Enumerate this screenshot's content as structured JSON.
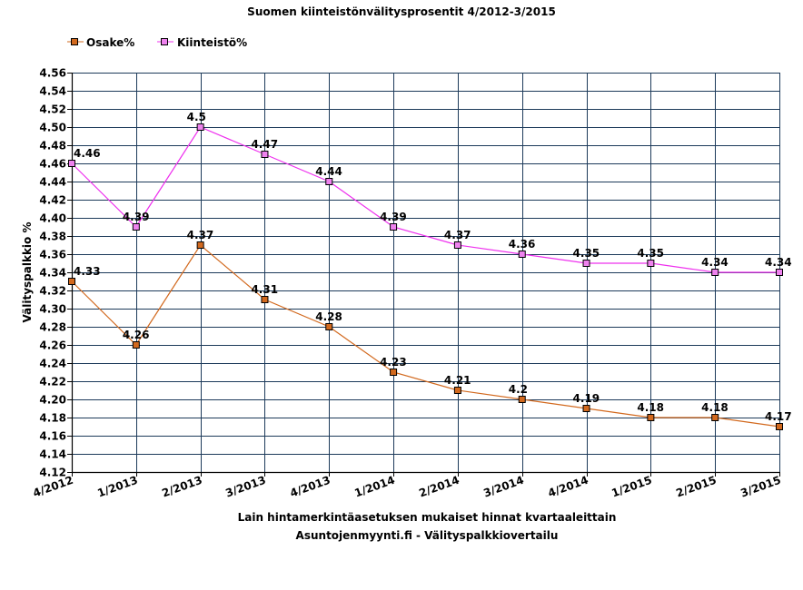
{
  "chart_data": {
    "type": "line",
    "title": "Suomen kiinteistönvälitysprosentit 4/2012-3/2015",
    "xlabel": "Lain hintamerkintäasetuksen mukaiset hinnat kvartaaleittain",
    "subtitle_bottom": "Asuntojenmyynti.fi - Välityspalkkiovertailu",
    "ylabel": "Välityspalkkio %",
    "categories": [
      "4/2012",
      "1/2013",
      "2/2013",
      "3/2013",
      "4/2013",
      "1/2014",
      "2/2014",
      "3/2014",
      "4/2014",
      "1/2015",
      "2/2015",
      "3/2015"
    ],
    "ylim": [
      4.12,
      4.56
    ],
    "ystep": 0.02,
    "yticks": [
      "4.12",
      "4.14",
      "4.16",
      "4.18",
      "4.20",
      "4.22",
      "4.24",
      "4.26",
      "4.28",
      "4.30",
      "4.32",
      "4.34",
      "4.36",
      "4.38",
      "4.40",
      "4.42",
      "4.44",
      "4.46",
      "4.48",
      "4.50",
      "4.52",
      "4.54",
      "4.56"
    ],
    "grid": true,
    "legend_position": "top-left",
    "series": [
      {
        "name": "Osake%",
        "color": "#d2691e",
        "marker_fill": "#d2691e",
        "values": [
          4.33,
          4.26,
          4.37,
          4.31,
          4.28,
          4.23,
          4.21,
          4.2,
          4.19,
          4.18,
          4.18,
          4.17
        ],
        "labels": [
          "4.33",
          "4.26",
          "4.37",
          "4.31",
          "4.28",
          "4.23",
          "4.21",
          "4.2",
          "4.19",
          "4.18",
          "4.18",
          "4.17"
        ]
      },
      {
        "name": "Kiinteistö%",
        "color": "#ee30ee",
        "marker_fill": "#ee82ee",
        "values": [
          4.46,
          4.39,
          4.5,
          4.47,
          4.44,
          4.39,
          4.37,
          4.36,
          4.35,
          4.35,
          4.34,
          4.34
        ],
        "labels": [
          "4.46",
          "4.39",
          "4.5",
          "4.47",
          "4.44",
          "4.39",
          "4.37",
          "4.36",
          "4.35",
          "4.35",
          "4.34",
          "4.34"
        ]
      }
    ]
  },
  "colors": {
    "grid": "#1c3a5a",
    "axis": "#000000",
    "background": "#ffffff"
  }
}
